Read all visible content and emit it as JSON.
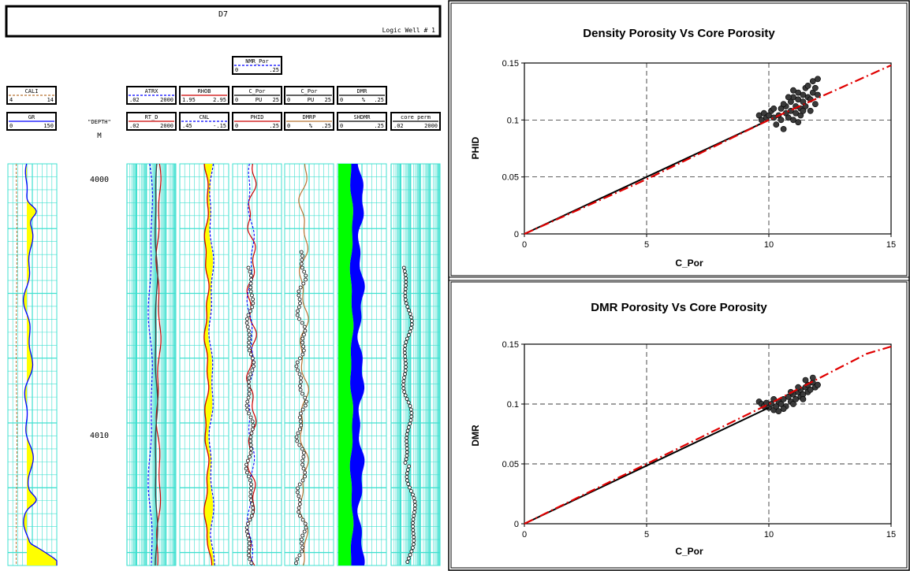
{
  "title": {
    "well_id": "D7",
    "well_name": "Logic Well # 1"
  },
  "depth_column": {
    "label": "\"DEPTH\"",
    "unit": "M",
    "depth_marks": [
      "4000",
      "4010"
    ]
  },
  "headers": {
    "cali": {
      "name": "CALI",
      "min": "4",
      "max": "14",
      "color": "#b87333"
    },
    "gr": {
      "name": "GR",
      "min": "0",
      "max": "150",
      "color": "#0000ff"
    },
    "atrx": {
      "name": "ATRX",
      "min": ".02",
      "max": "2000",
      "color": "#0000ff"
    },
    "rt_d": {
      "name": "RT_D",
      "min": ".02",
      "max": "2000",
      "color": "#cc0000"
    },
    "rhob": {
      "name": "RHOB",
      "min": "1.95",
      "max": "2.95",
      "color": "#cc0000"
    },
    "cnl": {
      "name": "CNL",
      "min": ".45",
      "max": "-.15",
      "color": "#0000ff"
    },
    "nmr_por": {
      "name": "NMR_Por",
      "min": "0",
      "max": ".25",
      "color": "#0000ff"
    },
    "c_por_1": {
      "name": "C_Por",
      "min": "0",
      "unit": "PU",
      "max": "25",
      "color": "#000000"
    },
    "phid": {
      "name": "PHID",
      "min": "0",
      "max": ".25",
      "color": "#cc0000"
    },
    "c_por_2": {
      "name": "C_Por",
      "min": "0",
      "unit": "PU",
      "max": "25",
      "color": "#000000"
    },
    "dmrp": {
      "name": "DMRP",
      "min": "0",
      "unit": "%",
      "max": ".25",
      "color": "#b87333"
    },
    "dmr": {
      "name": "DMR",
      "min": "0",
      "unit": "%",
      "max": ".25",
      "color": "#000000"
    },
    "shdmr": {
      "name": "SHDMR",
      "min": "0",
      "max": ".25",
      "color": "#000000"
    },
    "core_perm": {
      "name": "core perm",
      "min": ".02",
      "max": "2000",
      "color": "#000000"
    }
  },
  "colors": {
    "grid": "#40e0d0",
    "fill_yellow": "#ffff00",
    "fill_green": "#00ff00",
    "fill_blue": "#0000ff"
  },
  "chart_data": [
    {
      "type": "scatter",
      "title": "Density Porosity Vs Core Porosity",
      "xlabel": "C_Por",
      "ylabel": "PHID",
      "xlim": [
        0,
        15
      ],
      "ylim": [
        0,
        0.15
      ],
      "xticks": [
        "0",
        "5",
        "10",
        "15"
      ],
      "yticks": [
        "0",
        "0.05",
        "0.1",
        "0.15"
      ],
      "grid": true,
      "points": [
        [
          9.6,
          0.104
        ],
        [
          9.7,
          0.1
        ],
        [
          9.8,
          0.106
        ],
        [
          9.9,
          0.102
        ],
        [
          10.0,
          0.104
        ],
        [
          10.1,
          0.108
        ],
        [
          10.2,
          0.102
        ],
        [
          10.3,
          0.096
        ],
        [
          10.4,
          0.104
        ],
        [
          10.5,
          0.11
        ],
        [
          10.5,
          0.1
        ],
        [
          10.6,
          0.092
        ],
        [
          10.7,
          0.106
        ],
        [
          10.7,
          0.112
        ],
        [
          10.8,
          0.102
        ],
        [
          10.9,
          0.116
        ],
        [
          10.9,
          0.108
        ],
        [
          11.0,
          0.1
        ],
        [
          11.0,
          0.12
        ],
        [
          11.1,
          0.112
        ],
        [
          11.1,
          0.106
        ],
        [
          11.2,
          0.118
        ],
        [
          11.2,
          0.124
        ],
        [
          11.3,
          0.11
        ],
        [
          11.3,
          0.104
        ],
        [
          11.4,
          0.122
        ],
        [
          11.4,
          0.116
        ],
        [
          11.5,
          0.128
        ],
        [
          11.5,
          0.112
        ],
        [
          11.6,
          0.12
        ],
        [
          11.6,
          0.13
        ],
        [
          11.7,
          0.118
        ],
        [
          11.7,
          0.108
        ],
        [
          11.8,
          0.124
        ],
        [
          11.8,
          0.134
        ],
        [
          11.9,
          0.114
        ],
        [
          11.9,
          0.128
        ],
        [
          12.0,
          0.122
        ],
        [
          12.0,
          0.136
        ],
        [
          11.0,
          0.126
        ],
        [
          10.8,
          0.12
        ],
        [
          10.6,
          0.114
        ],
        [
          10.2,
          0.11
        ],
        [
          11.4,
          0.108
        ],
        [
          11.2,
          0.098
        ]
      ],
      "series": [
        {
          "type": "line",
          "style": "solid",
          "color": "#000000",
          "x": [
            0,
            10
          ],
          "y": [
            0,
            0.1
          ]
        },
        {
          "type": "line",
          "style": "dashdot",
          "color": "#e00000",
          "x": [
            0,
            5,
            10,
            15
          ],
          "y": [
            0,
            0.048,
            0.1,
            0.148
          ]
        }
      ]
    },
    {
      "type": "scatter",
      "title": "DMR Porosity Vs Core Porosity",
      "xlabel": "C_Por",
      "ylabel": "DMR",
      "xlim": [
        0,
        15
      ],
      "ylim": [
        0,
        0.15
      ],
      "xticks": [
        "0",
        "5",
        "10",
        "15"
      ],
      "yticks": [
        "0",
        "0.05",
        "0.1",
        "0.15"
      ],
      "grid": true,
      "points": [
        [
          9.6,
          0.102
        ],
        [
          9.7,
          0.1
        ],
        [
          9.8,
          0.098
        ],
        [
          9.9,
          0.101
        ],
        [
          10.0,
          0.097
        ],
        [
          10.1,
          0.1
        ],
        [
          10.2,
          0.095
        ],
        [
          10.3,
          0.098
        ],
        [
          10.4,
          0.102
        ],
        [
          10.5,
          0.1
        ],
        [
          10.6,
          0.104
        ],
        [
          10.7,
          0.098
        ],
        [
          10.8,
          0.106
        ],
        [
          10.9,
          0.102
        ],
        [
          11.0,
          0.108
        ],
        [
          11.0,
          0.1
        ],
        [
          11.1,
          0.104
        ],
        [
          11.2,
          0.11
        ],
        [
          11.3,
          0.106
        ],
        [
          11.3,
          0.112
        ],
        [
          11.4,
          0.108
        ],
        [
          11.5,
          0.114
        ],
        [
          11.6,
          0.11
        ],
        [
          11.6,
          0.116
        ],
        [
          11.7,
          0.112
        ],
        [
          11.8,
          0.118
        ],
        [
          11.9,
          0.114
        ],
        [
          12.0,
          0.116
        ],
        [
          11.2,
          0.114
        ],
        [
          10.9,
          0.11
        ],
        [
          11.5,
          0.12
        ],
        [
          11.8,
          0.122
        ],
        [
          10.6,
          0.096
        ],
        [
          10.4,
          0.094
        ],
        [
          11.4,
          0.104
        ],
        [
          10.2,
          0.104
        ]
      ],
      "series": [
        {
          "type": "line",
          "style": "solid",
          "color": "#000000",
          "x": [
            0,
            10
          ],
          "y": [
            0,
            0.097
          ]
        },
        {
          "type": "line",
          "style": "dashdot",
          "color": "#e00000",
          "x": [
            0,
            5,
            10,
            14,
            15
          ],
          "y": [
            0,
            0.05,
            0.1,
            0.142,
            0.148
          ]
        }
      ]
    }
  ]
}
